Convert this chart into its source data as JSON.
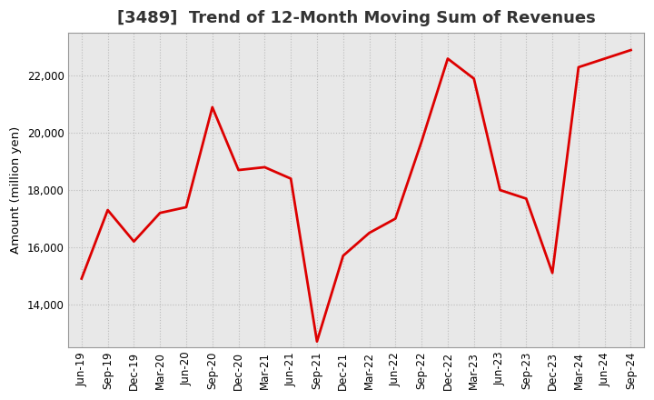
{
  "title": "[3489]  Trend of 12-Month Moving Sum of Revenues",
  "ylabel": "Amount (million yen)",
  "line_color": "#dd0000",
  "line_width": 2.0,
  "background_color": "#ffffff",
  "plot_bg_color": "#e8e8e8",
  "grid_color": "#bbbbbb",
  "title_color": "#333333",
  "labels": [
    "Jun-19",
    "Sep-19",
    "Dec-19",
    "Mar-20",
    "Jun-20",
    "Sep-20",
    "Dec-20",
    "Mar-21",
    "Jun-21",
    "Sep-21",
    "Dec-21",
    "Mar-22",
    "Jun-22",
    "Sep-22",
    "Dec-22",
    "Mar-23",
    "Jun-23",
    "Sep-23",
    "Dec-23",
    "Mar-24",
    "Jun-24",
    "Sep-24"
  ],
  "values": [
    14900,
    17300,
    16200,
    17200,
    17400,
    20900,
    18700,
    18800,
    18400,
    12700,
    15700,
    16500,
    17000,
    19700,
    22600,
    21900,
    18000,
    17700,
    15100,
    22300,
    22600,
    22900
  ],
  "ylim": [
    12500,
    23500
  ],
  "yticks": [
    14000,
    16000,
    18000,
    20000,
    22000
  ],
  "title_fontsize": 13,
  "tick_fontsize": 8.5,
  "ylabel_fontsize": 9.5
}
